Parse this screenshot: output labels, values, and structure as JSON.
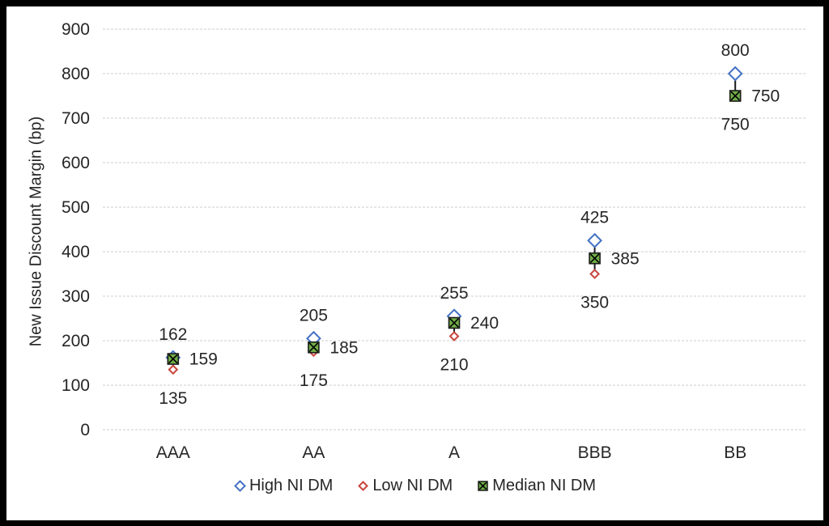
{
  "chart_data": {
    "type": "scatter",
    "title": "",
    "categories": [
      "AAA",
      "AA",
      "A",
      "BBB",
      "BB"
    ],
    "series": [
      {
        "name": "High NI DM",
        "marker": "open-diamond",
        "color": "#4472C4",
        "values": [
          162,
          205,
          255,
          425,
          800
        ]
      },
      {
        "name": "Low NI DM",
        "marker": "open-diamond-small",
        "color": "#C9463D",
        "values": [
          135,
          175,
          210,
          350,
          750
        ]
      },
      {
        "name": "Median NI DM",
        "marker": "square-with-x",
        "color": "#70AD47",
        "values": [
          159,
          185,
          240,
          385,
          750
        ]
      }
    ],
    "yticks": [
      0,
      100,
      200,
      300,
      400,
      500,
      600,
      700,
      800,
      900
    ],
    "ylim": [
      0,
      900
    ],
    "ylabel": "New Issue Discount Margin (bp)",
    "xlabel": "",
    "grid": true,
    "high_low_lines": true,
    "legend_position": "bottom",
    "gridline_color": "#cccccc",
    "text_color": "#262626",
    "frame_color": "#000000"
  }
}
